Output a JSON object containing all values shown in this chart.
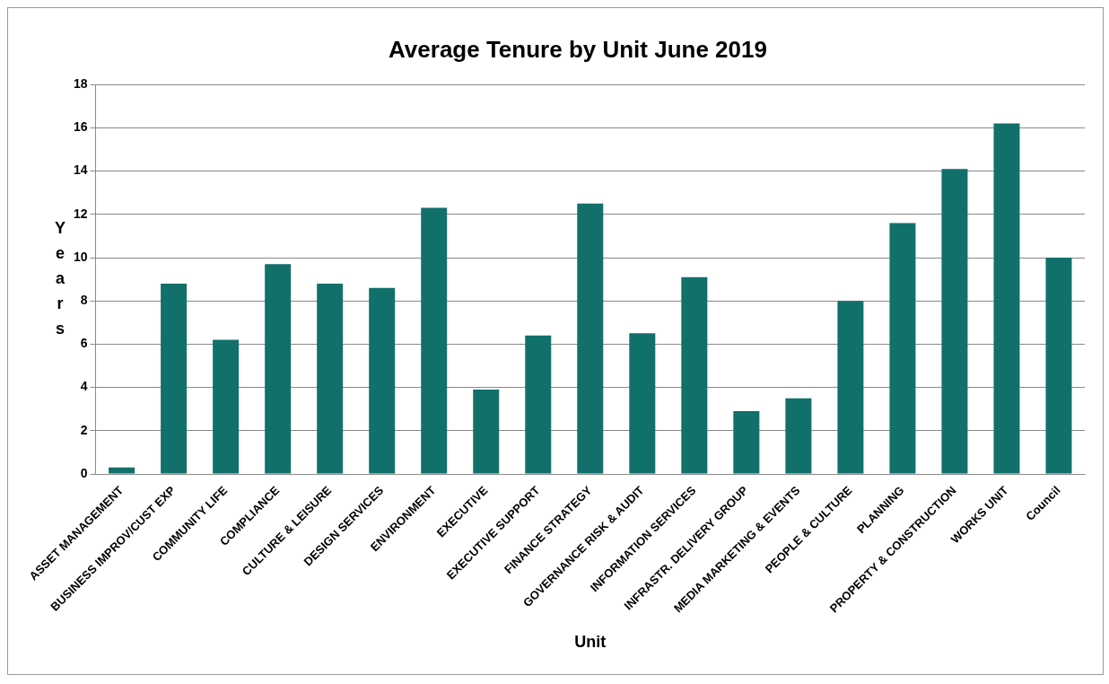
{
  "chart_data": {
    "type": "bar",
    "title": "Average Tenure by Unit June 2019",
    "xlabel": "Unit",
    "ylabel": "Years",
    "categories": [
      "ASSET MANAGEMENT",
      "BUSINESS IMPROV/CUST EXP",
      "COMMUNITY LIFE",
      "COMPLIANCE",
      "CULTURE & LEISURE",
      "DESIGN SERVICES",
      "ENVIRONMENT",
      "EXECUTIVE",
      "EXECUTIVE SUPPORT",
      "FINANCE STRATEGY",
      "GOVERNANCE RISK & AUDIT",
      "INFORMATION SERVICES",
      "INFRASTR. DELIVERY GROUP",
      "MEDIA MARKETING & EVENTS",
      "PEOPLE & CULTURE",
      "PLANNING",
      "PROPERTY & CONSTRUCTION",
      "WORKS UNIT",
      "Council"
    ],
    "values": [
      0.3,
      8.8,
      6.2,
      9.7,
      8.8,
      8.6,
      12.3,
      3.9,
      6.4,
      12.5,
      6.5,
      9.1,
      2.9,
      3.5,
      8.0,
      11.6,
      14.1,
      16.2,
      10.0
    ],
    "color": "#12706b",
    "ylim": [
      0,
      18
    ],
    "yticks": [
      0,
      2,
      4,
      6,
      8,
      10,
      12,
      14,
      16,
      18
    ],
    "grid": "y",
    "legend": false
  }
}
